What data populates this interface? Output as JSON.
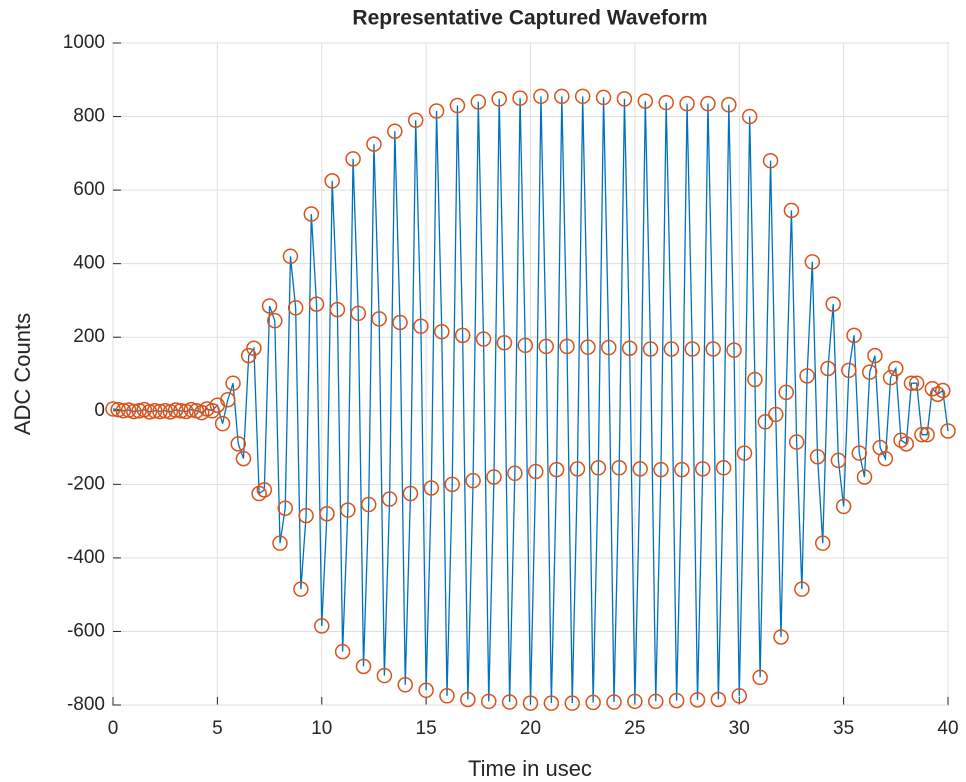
{
  "chart_data": {
    "type": "line",
    "title": "Representative Captured Waveform",
    "xlabel": "Time in usec",
    "ylabel": "ADC Counts",
    "x": [
      0,
      0.25,
      0.5,
      0.75,
      1,
      1.25,
      1.5,
      1.75,
      2,
      2.25,
      2.5,
      2.75,
      3,
      3.25,
      3.5,
      3.75,
      4,
      4.25,
      4.5,
      4.75,
      5,
      5.25,
      5.5,
      5.75,
      6,
      6.25,
      6.5,
      6.75,
      7,
      7.25,
      7.5,
      7.75,
      8,
      8.25,
      8.5,
      8.75,
      9,
      9.25,
      9.5,
      9.75,
      10,
      10.25,
      10.5,
      10.75,
      11,
      11.25,
      11.5,
      11.75,
      12,
      12.25,
      12.5,
      12.75,
      13,
      13.25,
      13.5,
      13.75,
      14,
      14.25,
      14.5,
      14.75,
      15,
      15.25,
      15.5,
      15.75,
      16,
      16.25,
      16.5,
      16.75,
      17,
      17.25,
      17.5,
      17.75,
      18,
      18.25,
      18.5,
      18.75,
      19,
      19.25,
      19.5,
      19.75,
      20,
      20.25,
      20.5,
      20.75,
      21,
      21.25,
      21.5,
      21.75,
      22,
      22.25,
      22.5,
      22.75,
      23,
      23.25,
      23.5,
      23.75,
      24,
      24.25,
      24.5,
      24.75,
      25,
      25.25,
      25.5,
      25.75,
      26,
      26.25,
      26.5,
      26.75,
      27,
      27.25,
      27.5,
      27.75,
      28,
      28.25,
      28.5,
      28.75,
      29,
      29.25,
      29.5,
      29.75,
      30,
      30.25,
      30.5,
      30.75,
      31,
      31.25,
      31.5,
      31.75,
      32,
      32.25,
      32.5,
      32.75,
      33,
      33.25,
      33.5,
      33.75,
      34,
      34.25,
      34.5,
      34.75,
      35,
      35.25,
      35.5,
      35.75,
      36,
      36.25,
      36.5,
      36.75,
      37,
      37.25,
      37.5,
      37.75,
      38,
      38.25,
      38.5,
      38.75,
      39,
      39.25,
      39.5,
      39.75,
      40
    ],
    "series": [
      {
        "color": "#0072bd",
        "marker_color": "#d95319",
        "values": [
          5,
          3,
          0,
          2,
          -2,
          0,
          3,
          -3,
          0,
          -2,
          0,
          -3,
          2,
          0,
          -2,
          3,
          0,
          -5,
          5,
          0,
          15,
          -35,
          30,
          75,
          -90,
          -130,
          150,
          170,
          -225,
          -215,
          285,
          245,
          -360,
          -265,
          420,
          280,
          -485,
          -285,
          535,
          290,
          -585,
          -280,
          625,
          275,
          -655,
          -270,
          685,
          265,
          -695,
          -255,
          725,
          250,
          -720,
          -240,
          760,
          240,
          -745,
          -225,
          790,
          230,
          -760,
          -210,
          815,
          215,
          -775,
          -200,
          830,
          205,
          -785,
          -190,
          840,
          195,
          -790,
          -180,
          848,
          185,
          -792,
          -170,
          850,
          178,
          -795,
          -165,
          855,
          175,
          -795,
          -160,
          855,
          175,
          -795,
          -158,
          855,
          173,
          -793,
          -155,
          852,
          172,
          -792,
          -155,
          848,
          170,
          -790,
          -158,
          842,
          168,
          -790,
          -160,
          838,
          168,
          -788,
          -160,
          835,
          168,
          -786,
          -158,
          835,
          168,
          -785,
          -155,
          832,
          165,
          -775,
          -115,
          800,
          85,
          -725,
          -30,
          680,
          -10,
          -615,
          50,
          545,
          -85,
          -485,
          95,
          405,
          -125,
          -360,
          115,
          290,
          -135,
          -260,
          110,
          205,
          -115,
          -180,
          105,
          150,
          -100,
          -130,
          90,
          115,
          -80,
          -90,
          75,
          75,
          -65,
          -65,
          60,
          45,
          55,
          -55
        ]
      }
    ],
    "xlim": [
      0,
      40
    ],
    "xticks": [
      0,
      5,
      10,
      15,
      20,
      25,
      30,
      35,
      40
    ],
    "ylim": [
      -800,
      1000
    ],
    "yticks": [
      -800,
      -600,
      -400,
      -200,
      0,
      200,
      400,
      600,
      800,
      1000
    ],
    "grid": true
  }
}
